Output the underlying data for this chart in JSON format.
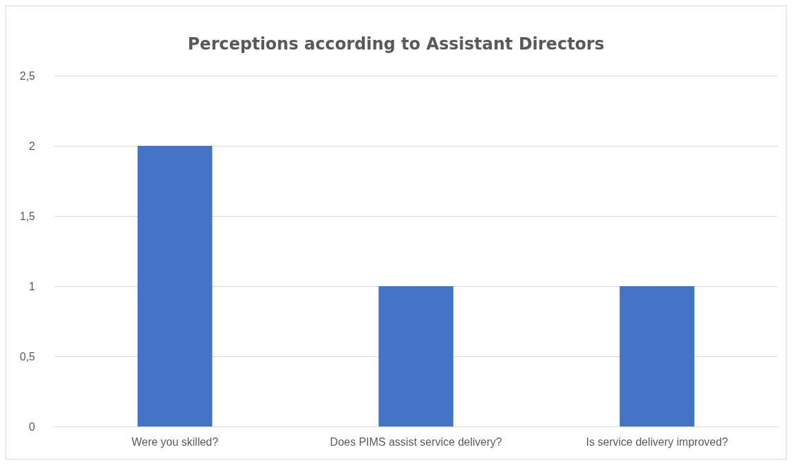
{
  "chart_data": {
    "type": "bar",
    "title": "Perceptions according to Assistant Directors",
    "categories": [
      "Were you skilled?",
      "Does PIMS assist service delivery?",
      "Is service delivery improved?"
    ],
    "values": [
      2,
      1,
      1
    ],
    "color": "#4472c4",
    "ylim": [
      0,
      2.5
    ],
    "yticks": [
      0,
      {
        "value": 0.5,
        "label": "0,5"
      },
      1,
      {
        "value": 1.5,
        "label": "1,5"
      },
      2,
      {
        "value": 2.5,
        "label": "2,5"
      }
    ],
    "grid": "y"
  }
}
